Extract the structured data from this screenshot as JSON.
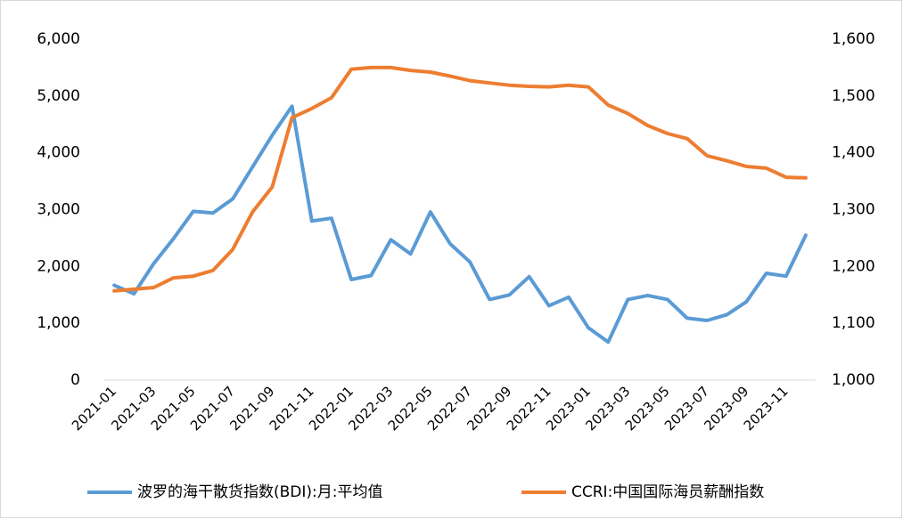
{
  "chart_data": {
    "type": "line",
    "categories": [
      "2021-01",
      null,
      "2021-03",
      null,
      "2021-05",
      null,
      "2021-07",
      null,
      "2021-09",
      null,
      "2021-11",
      null,
      "2022-01",
      null,
      "2022-03",
      null,
      "2022-05",
      null,
      "2022-07",
      null,
      "2022-09",
      null,
      "2022-11",
      null,
      "2023-01",
      null,
      "2023-03",
      null,
      "2023-05",
      null,
      "2023-07",
      null,
      "2023-09",
      null,
      "2023-11",
      null
    ],
    "series": [
      {
        "name": "波罗的海干散货指数(BDI):月:平均值",
        "color": "#5b9bd5",
        "values": [
          1670,
          1520,
          2050,
          2490,
          2970,
          2940,
          3190,
          3750,
          4310,
          4820,
          2800,
          2850,
          1770,
          1840,
          2470,
          2220,
          2960,
          2400,
          2080,
          1420,
          1500,
          1820,
          1310,
          1460,
          920,
          670,
          1420,
          1490,
          1420,
          1090,
          1050,
          1150,
          1380,
          1880,
          1830,
          2550
        ]
      },
      {
        "name": "CCRI:中国国际海员薪酬指数",
        "color": "#ed7d31",
        "axis": "y2",
        "values": [
          1157,
          1160,
          1163,
          1180,
          1183,
          1193,
          1230,
          1296,
          1340,
          1462,
          1478,
          1497,
          1547,
          1550,
          1550,
          1545,
          1542,
          1535,
          1527,
          1523,
          1519,
          1517,
          1516,
          1519,
          1516,
          1484,
          1469,
          1448,
          1434,
          1425,
          1395,
          1386,
          1376,
          1373,
          1357,
          1356
        ]
      }
    ],
    "ylim": [
      0,
      6000
    ],
    "yticks": [
      0,
      {
        "value": 1000,
        "label": "1,000"
      },
      {
        "value": 2000,
        "label": "2,000"
      },
      {
        "value": 3000,
        "label": "3,000"
      },
      {
        "value": 4000,
        "label": "4,000"
      },
      {
        "value": 5000,
        "label": "5,000"
      },
      {
        "value": 6000,
        "label": "6,000"
      }
    ],
    "y2lim": [
      1000,
      1600
    ],
    "y2ticks": [
      {
        "value": 1000,
        "label": "1,000"
      },
      {
        "value": 1100,
        "label": "1,100"
      },
      {
        "value": 1200,
        "label": "1,200"
      },
      {
        "value": 1300,
        "label": "1,300"
      },
      {
        "value": 1400,
        "label": "1,400"
      },
      {
        "value": 1500,
        "label": "1,500"
      },
      {
        "value": 1600,
        "label": "1,600"
      }
    ],
    "legend": "bottom"
  }
}
